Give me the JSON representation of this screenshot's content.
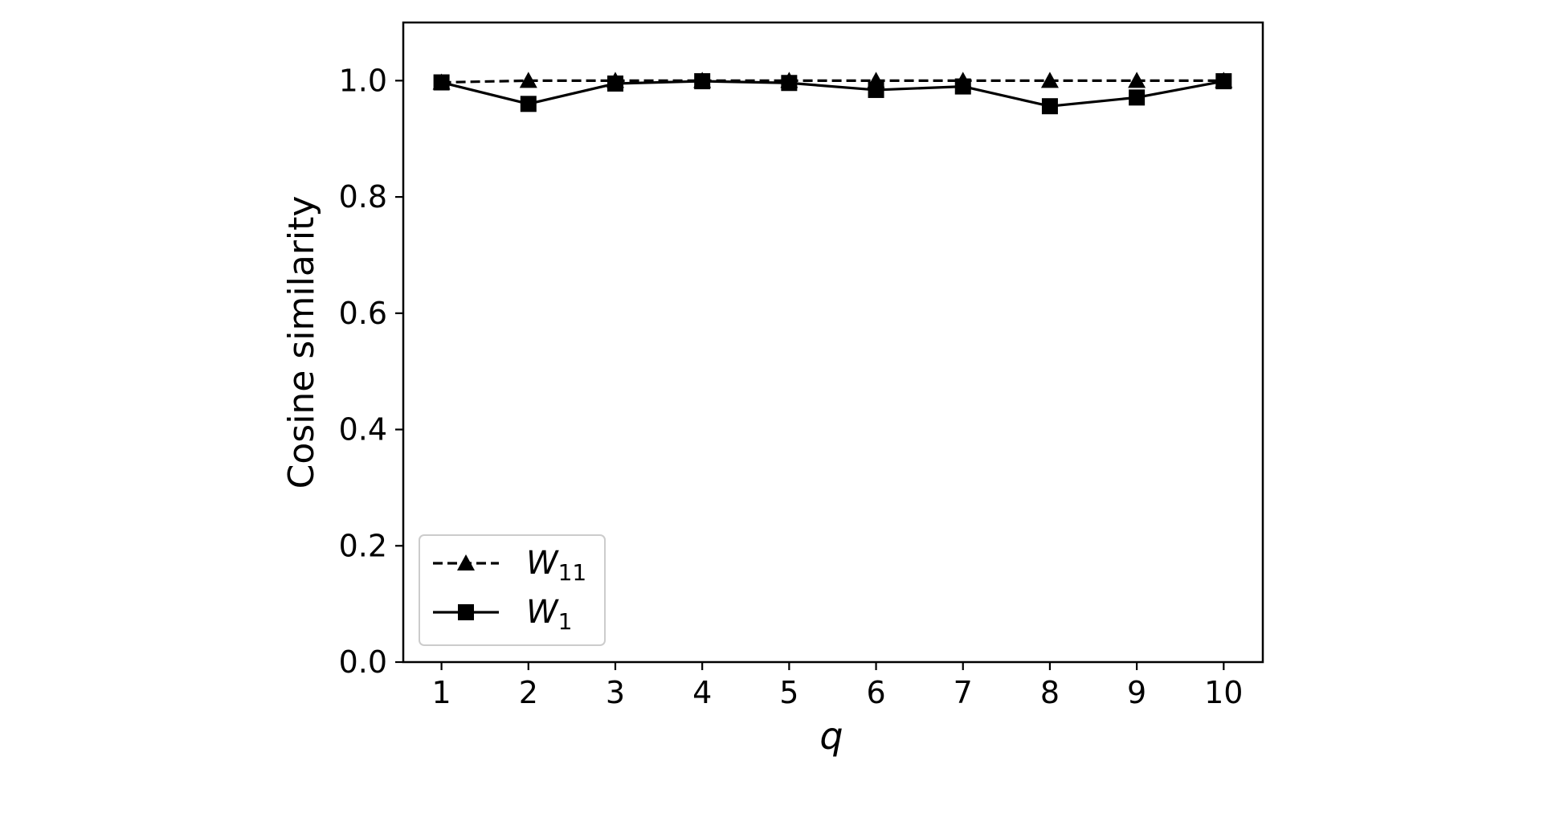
{
  "chart_data": {
    "type": "line",
    "x": [
      1,
      2,
      3,
      4,
      5,
      6,
      7,
      8,
      9,
      10
    ],
    "xticks": [
      "1",
      "2",
      "3",
      "4",
      "5",
      "6",
      "7",
      "8",
      "9",
      "10"
    ],
    "yticks": [
      "0.0",
      "0.2",
      "0.4",
      "0.6",
      "0.8",
      "1.0"
    ],
    "xlabel": "q",
    "ylabel": "Cosine similarity",
    "xlim": [
      0.56,
      10.45
    ],
    "ylim": [
      0.0,
      1.1
    ],
    "grid": false,
    "legend_position": "lower-left",
    "series": [
      {
        "name_main": "W",
        "name_sub": "11",
        "line_style": "dashed",
        "marker": "triangle",
        "color": "#000000",
        "values": [
          0.997,
          1.0,
          1.0,
          1.0,
          1.0,
          1.0,
          1.0,
          1.0,
          1.0,
          1.0
        ]
      },
      {
        "name_main": "W",
        "name_sub": "1",
        "line_style": "solid",
        "marker": "square",
        "color": "#000000",
        "values": [
          0.997,
          0.96,
          0.995,
          0.999,
          0.996,
          0.984,
          0.99,
          0.956,
          0.971,
          0.999
        ]
      }
    ]
  }
}
